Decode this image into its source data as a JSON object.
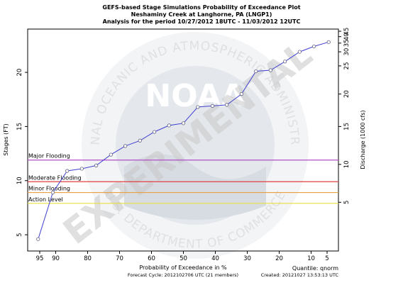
{
  "chart_data": {
    "type": "line",
    "title": [
      "GEFS-based Stage Simulations Probability of Exceedance Plot",
      "Neshaminy Creek at Langhorne, PA (LNGP1)",
      "Analysis for the period 10/27/2012 18UTC - 11/03/2012 12UTC"
    ],
    "xlabel": "Probability of Exceedance in %",
    "ylabel": "Stages (FT)",
    "y2label": "Discharge (1000 cfs)",
    "xlim": [
      98,
      2
    ],
    "ylim": [
      3.5,
      24
    ],
    "x_ticks": [
      95,
      90,
      80,
      70,
      60,
      50,
      40,
      30,
      20,
      10,
      5
    ],
    "y_ticks": [
      5,
      10,
      15,
      20
    ],
    "y2_ticks": [
      {
        "label": "5",
        "stage": 8.0
      },
      {
        "label": "10",
        "stage": 11.5
      },
      {
        "label": "15",
        "stage": 15.0
      },
      {
        "label": "20",
        "stage": 18.0
      },
      {
        "label": "25",
        "stage": 20.6
      },
      {
        "label": "30",
        "stage": 21.9
      },
      {
        "label": "35",
        "stage": 22.7
      },
      {
        "label": "40",
        "stage": 23.3
      },
      {
        "label": "45",
        "stage": 23.8
      }
    ],
    "series": [
      {
        "color": "#4040d0",
        "x": [
          95.5,
          90.9,
          86.4,
          81.8,
          77.3,
          72.7,
          68.2,
          63.6,
          59.1,
          54.5,
          50.0,
          45.5,
          40.9,
          36.4,
          31.8,
          27.3,
          22.7,
          18.2,
          13.6,
          9.1,
          4.5
        ],
        "y": [
          4.6,
          8.9,
          10.9,
          11.1,
          11.4,
          12.4,
          13.2,
          13.7,
          14.5,
          15.1,
          15.3,
          16.8,
          16.9,
          17.0,
          18.0,
          20.1,
          20.2,
          21.0,
          21.9,
          22.4,
          22.8
        ]
      }
    ],
    "thresholds": [
      {
        "name": "Major Flooding",
        "value": 11.9,
        "color": "#b04ec8"
      },
      {
        "name": "Moderate Flooding",
        "value": 9.9,
        "color": "#e04040"
      },
      {
        "name": "Minor Flooding",
        "value": 8.9,
        "color": "#e8a040"
      },
      {
        "name": "Action Level",
        "value": 7.9,
        "color": "#e8e040"
      }
    ],
    "grid": false
  },
  "footer": {
    "forecast_cycle": "Forecast Cycle: 2012102706 UTC  (21 members)",
    "quantile": "Quantile:  qnorm",
    "created": "Created:  20121027 13:53:13 UTC"
  },
  "watermark": {
    "text": "EXPERIMENTAL",
    "logo_word": "NOAA",
    "ring_top": "NATIONAL OCEANIC AND ATMOSPHERIC ADMINISTRATION",
    "ring_bottom": "U.S. DEPARTMENT OF COMMERCE"
  }
}
